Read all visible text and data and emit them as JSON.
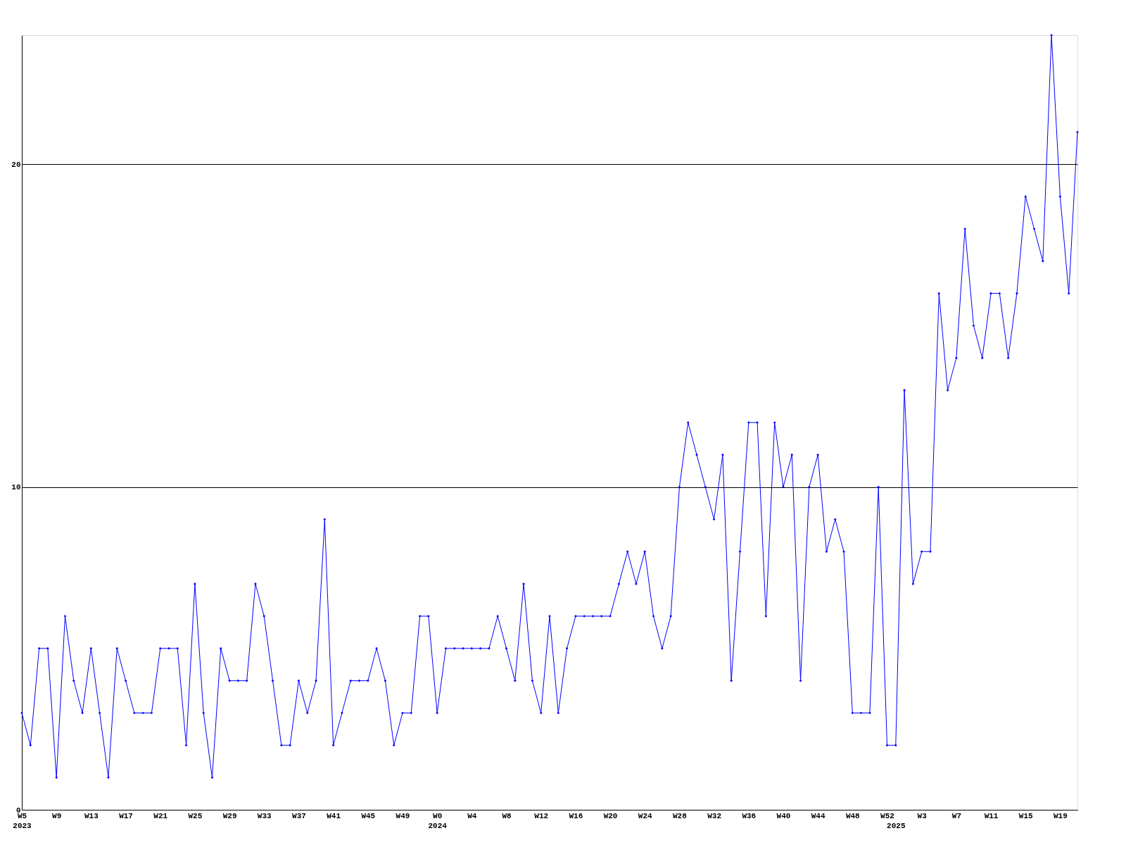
{
  "chart_data": {
    "type": "line",
    "categories": [
      "W5\n2023",
      null,
      null,
      null,
      "W9",
      null,
      null,
      null,
      "W13",
      null,
      null,
      null,
      "W17",
      null,
      null,
      null,
      "W21",
      null,
      null,
      null,
      "W25",
      null,
      null,
      null,
      "W29",
      null,
      null,
      null,
      "W33",
      null,
      null,
      null,
      "W37",
      null,
      null,
      null,
      "W41",
      null,
      null,
      null,
      "W45",
      null,
      null,
      null,
      "W49",
      null,
      null,
      null,
      "W0\n2024",
      null,
      null,
      null,
      "W4",
      null,
      null,
      null,
      "W8",
      null,
      null,
      null,
      "W12",
      null,
      null,
      null,
      "W16",
      null,
      null,
      null,
      "W20",
      null,
      null,
      null,
      "W24",
      null,
      null,
      null,
      "W28",
      null,
      null,
      null,
      "W32",
      null,
      null,
      null,
      "W36",
      null,
      null,
      null,
      "W40",
      null,
      null,
      null,
      "W44",
      null,
      null,
      null,
      "W48",
      null,
      null,
      null,
      "W52",
      "\n2025",
      null,
      null,
      "W3",
      null,
      null,
      null,
      "W7",
      null,
      null,
      null,
      "W11",
      null,
      null,
      null,
      "W15",
      null,
      null,
      null,
      "W19",
      null,
      null
    ],
    "series": [
      {
        "color": "#0000ff",
        "values": [
          3,
          2,
          5,
          5,
          1,
          6,
          4,
          3,
          5,
          3,
          1,
          5,
          4,
          3,
          3,
          3,
          5,
          5,
          5,
          2,
          7,
          3,
          1,
          5,
          4,
          4,
          4,
          7,
          6,
          4,
          2,
          2,
          4,
          3,
          4,
          9,
          2,
          3,
          4,
          4,
          4,
          5,
          4,
          2,
          3,
          3,
          6,
          6,
          3,
          5,
          5,
          5,
          5,
          5,
          5,
          6,
          5,
          4,
          7,
          4,
          3,
          6,
          3,
          5,
          6,
          6,
          6,
          6,
          6,
          7,
          8,
          7,
          8,
          6,
          5,
          6,
          10,
          12,
          11,
          10,
          9,
          11,
          4,
          8,
          12,
          12,
          6,
          12,
          10,
          11,
          4,
          10,
          11,
          8,
          9,
          8,
          3,
          3,
          3,
          10,
          2,
          2,
          13,
          7,
          8,
          8,
          16,
          13,
          14,
          18,
          15,
          14,
          16,
          16,
          14,
          16,
          19,
          18,
          17,
          24,
          19,
          16,
          21
        ]
      }
    ],
    "ylim": [
      0,
      24
    ],
    "yticks": [
      0,
      10,
      20
    ],
    "grid": "y",
    "marker": "diamond",
    "line_style": "solid"
  }
}
